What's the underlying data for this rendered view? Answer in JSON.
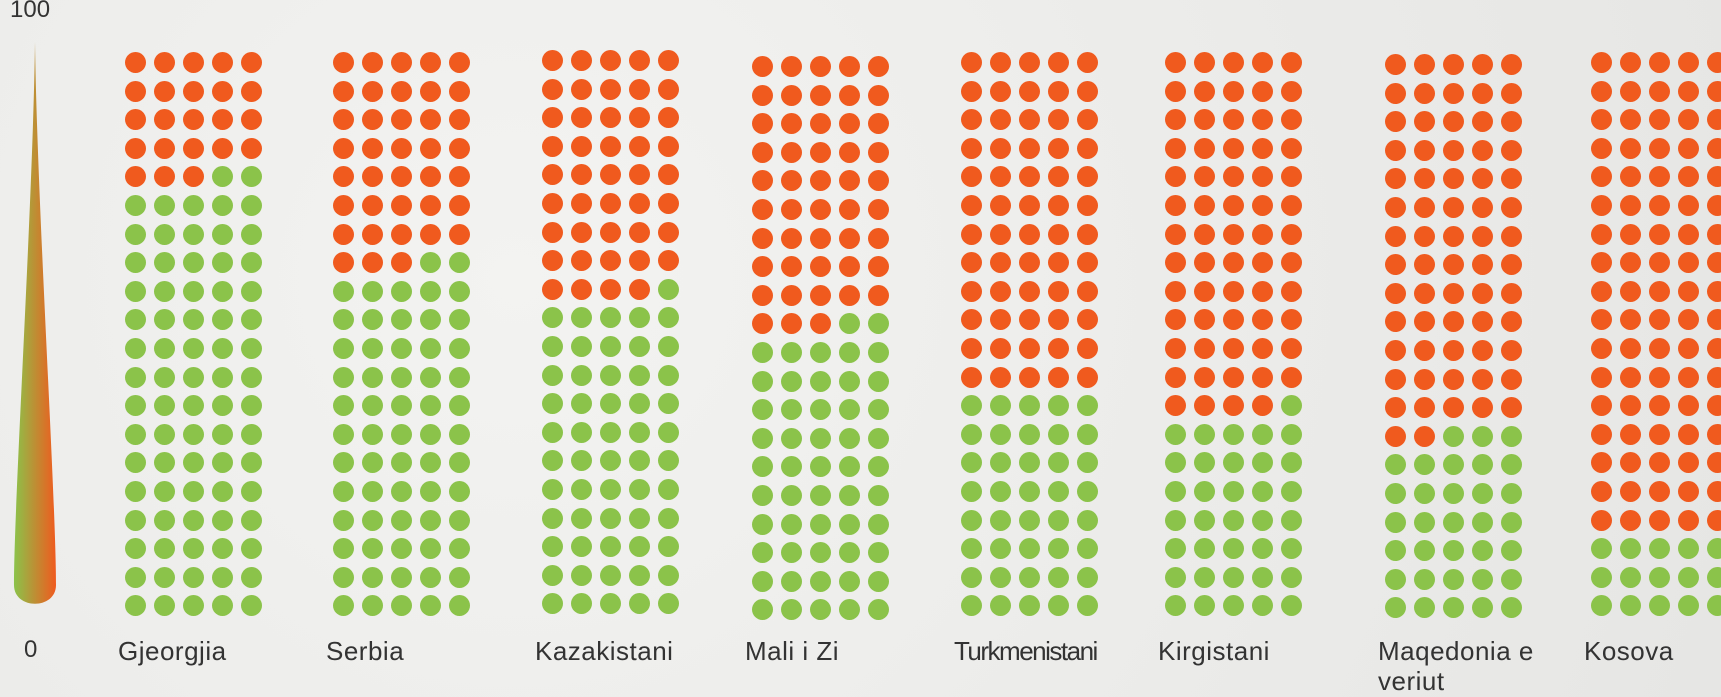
{
  "chart_data": {
    "type": "waffle",
    "categories": [
      "Gjeorgjia",
      "Serbia",
      "Kazakistani",
      "Mali i Zi",
      "Turkmenistani",
      "Kirgistani",
      "Maqedonia e veriut",
      "Kosova"
    ],
    "values": [
      23,
      38,
      44,
      48,
      60,
      64,
      67,
      85
    ],
    "color": "#f05a1e",
    "rest_color": "#8bc34a",
    "ylim": [
      0,
      100
    ],
    "yticks": [
      0,
      100
    ]
  }
}
